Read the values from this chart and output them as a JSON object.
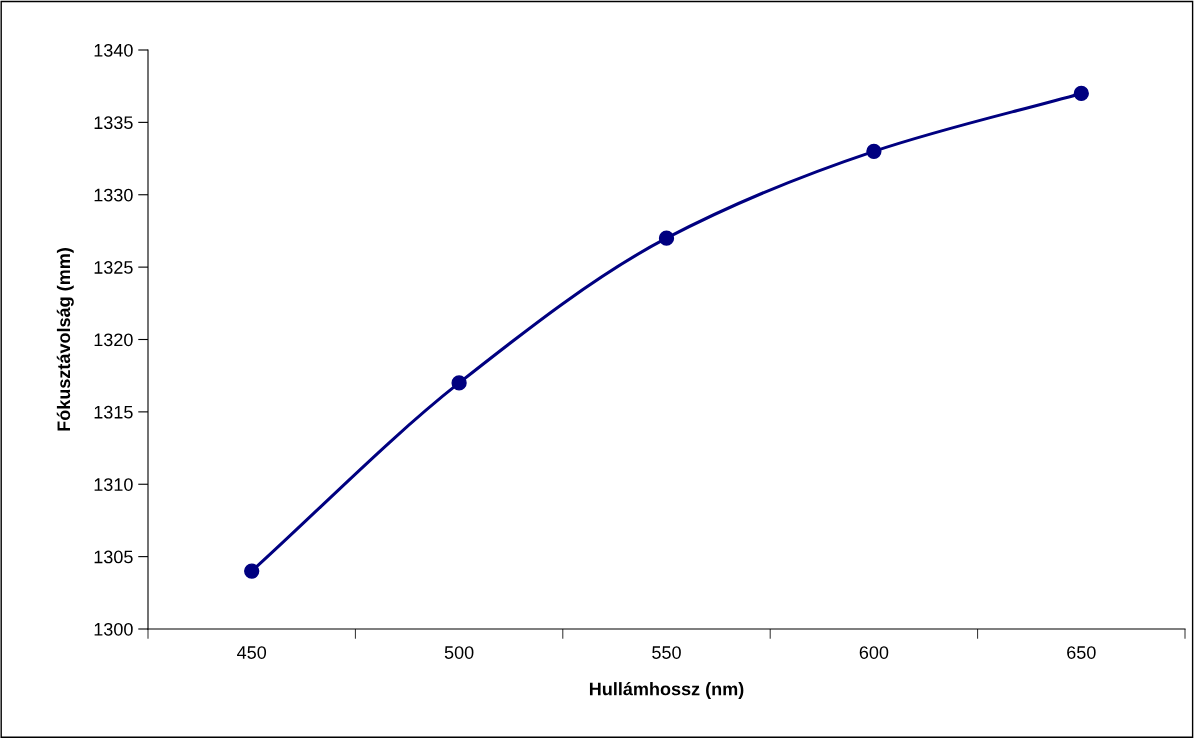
{
  "chart_data": {
    "type": "line",
    "xlabel": "Hullámhossz (nm)",
    "ylabel": "Fókusztávolság (mm)",
    "categories": [
      "450",
      "500",
      "550",
      "600",
      "650"
    ],
    "series": [
      {
        "color": "#000080",
        "values": [
          1304,
          1317,
          1327,
          1333,
          1337
        ]
      }
    ],
    "ylim": [
      1300,
      1340
    ],
    "yticks": [
      1300,
      1305,
      1310,
      1315,
      1320,
      1325,
      1330,
      1335,
      1340
    ],
    "marker": "circle",
    "line_style": "solid",
    "grid": false,
    "legend": false
  }
}
